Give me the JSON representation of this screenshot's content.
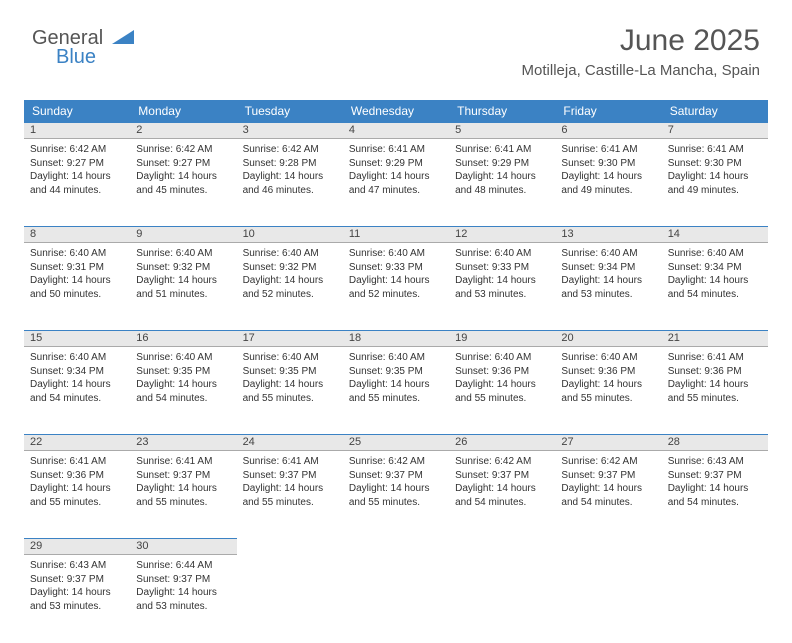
{
  "logo": {
    "textGray": "General",
    "textBlue": "Blue"
  },
  "header": {
    "monthTitle": "June 2025",
    "location": "Motilleja, Castille-La Mancha, Spain"
  },
  "colors": {
    "headerBg": "#3b82c4",
    "headerText": "#ffffff",
    "dayNumBg": "#e8e8e8",
    "rowTopBorder": "#3b82c4",
    "bodyText": "#333333",
    "titleText": "#555555"
  },
  "dayHeaders": [
    "Sunday",
    "Monday",
    "Tuesday",
    "Wednesday",
    "Thursday",
    "Friday",
    "Saturday"
  ],
  "days": [
    {
      "n": "1",
      "sunrise": "6:42 AM",
      "sunset": "9:27 PM",
      "daylight": "14 hours and 44 minutes."
    },
    {
      "n": "2",
      "sunrise": "6:42 AM",
      "sunset": "9:27 PM",
      "daylight": "14 hours and 45 minutes."
    },
    {
      "n": "3",
      "sunrise": "6:42 AM",
      "sunset": "9:28 PM",
      "daylight": "14 hours and 46 minutes."
    },
    {
      "n": "4",
      "sunrise": "6:41 AM",
      "sunset": "9:29 PM",
      "daylight": "14 hours and 47 minutes."
    },
    {
      "n": "5",
      "sunrise": "6:41 AM",
      "sunset": "9:29 PM",
      "daylight": "14 hours and 48 minutes."
    },
    {
      "n": "6",
      "sunrise": "6:41 AM",
      "sunset": "9:30 PM",
      "daylight": "14 hours and 49 minutes."
    },
    {
      "n": "7",
      "sunrise": "6:41 AM",
      "sunset": "9:30 PM",
      "daylight": "14 hours and 49 minutes."
    },
    {
      "n": "8",
      "sunrise": "6:40 AM",
      "sunset": "9:31 PM",
      "daylight": "14 hours and 50 minutes."
    },
    {
      "n": "9",
      "sunrise": "6:40 AM",
      "sunset": "9:32 PM",
      "daylight": "14 hours and 51 minutes."
    },
    {
      "n": "10",
      "sunrise": "6:40 AM",
      "sunset": "9:32 PM",
      "daylight": "14 hours and 52 minutes."
    },
    {
      "n": "11",
      "sunrise": "6:40 AM",
      "sunset": "9:33 PM",
      "daylight": "14 hours and 52 minutes."
    },
    {
      "n": "12",
      "sunrise": "6:40 AM",
      "sunset": "9:33 PM",
      "daylight": "14 hours and 53 minutes."
    },
    {
      "n": "13",
      "sunrise": "6:40 AM",
      "sunset": "9:34 PM",
      "daylight": "14 hours and 53 minutes."
    },
    {
      "n": "14",
      "sunrise": "6:40 AM",
      "sunset": "9:34 PM",
      "daylight": "14 hours and 54 minutes."
    },
    {
      "n": "15",
      "sunrise": "6:40 AM",
      "sunset": "9:34 PM",
      "daylight": "14 hours and 54 minutes."
    },
    {
      "n": "16",
      "sunrise": "6:40 AM",
      "sunset": "9:35 PM",
      "daylight": "14 hours and 54 minutes."
    },
    {
      "n": "17",
      "sunrise": "6:40 AM",
      "sunset": "9:35 PM",
      "daylight": "14 hours and 55 minutes."
    },
    {
      "n": "18",
      "sunrise": "6:40 AM",
      "sunset": "9:35 PM",
      "daylight": "14 hours and 55 minutes."
    },
    {
      "n": "19",
      "sunrise": "6:40 AM",
      "sunset": "9:36 PM",
      "daylight": "14 hours and 55 minutes."
    },
    {
      "n": "20",
      "sunrise": "6:40 AM",
      "sunset": "9:36 PM",
      "daylight": "14 hours and 55 minutes."
    },
    {
      "n": "21",
      "sunrise": "6:41 AM",
      "sunset": "9:36 PM",
      "daylight": "14 hours and 55 minutes."
    },
    {
      "n": "22",
      "sunrise": "6:41 AM",
      "sunset": "9:36 PM",
      "daylight": "14 hours and 55 minutes."
    },
    {
      "n": "23",
      "sunrise": "6:41 AM",
      "sunset": "9:37 PM",
      "daylight": "14 hours and 55 minutes."
    },
    {
      "n": "24",
      "sunrise": "6:41 AM",
      "sunset": "9:37 PM",
      "daylight": "14 hours and 55 minutes."
    },
    {
      "n": "25",
      "sunrise": "6:42 AM",
      "sunset": "9:37 PM",
      "daylight": "14 hours and 55 minutes."
    },
    {
      "n": "26",
      "sunrise": "6:42 AM",
      "sunset": "9:37 PM",
      "daylight": "14 hours and 54 minutes."
    },
    {
      "n": "27",
      "sunrise": "6:42 AM",
      "sunset": "9:37 PM",
      "daylight": "14 hours and 54 minutes."
    },
    {
      "n": "28",
      "sunrise": "6:43 AM",
      "sunset": "9:37 PM",
      "daylight": "14 hours and 54 minutes."
    },
    {
      "n": "29",
      "sunrise": "6:43 AM",
      "sunset": "9:37 PM",
      "daylight": "14 hours and 53 minutes."
    },
    {
      "n": "30",
      "sunrise": "6:44 AM",
      "sunset": "9:37 PM",
      "daylight": "14 hours and 53 minutes."
    }
  ],
  "labels": {
    "sunrise": "Sunrise:",
    "sunset": "Sunset:",
    "daylight": "Daylight:"
  },
  "layout": {
    "startDayOfWeek": 0,
    "totalDays": 30,
    "columns": 7
  }
}
